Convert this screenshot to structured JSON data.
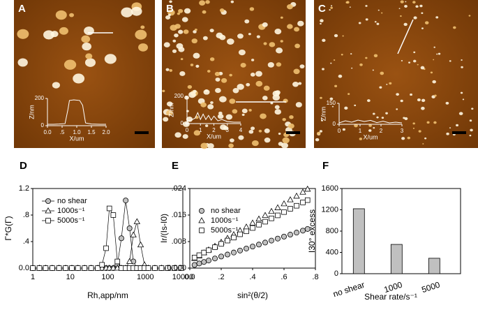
{
  "panel_labels": [
    "A",
    "B",
    "C",
    "D",
    "E",
    "F"
  ],
  "chart_data": [
    {
      "type": "line",
      "xscale": "log",
      "frame": "box",
      "legend": true,
      "xlabel": "Rh,app/nm",
      "ylabel": "Γ*G(Γ)",
      "x": [
        1,
        1.5,
        2.2,
        3.3,
        5,
        7.5,
        11,
        16,
        24,
        36,
        54,
        70,
        90,
        110,
        140,
        180,
        230,
        300,
        380,
        480,
        600,
        750,
        950,
        1200,
        1800,
        2700,
        4000,
        6000,
        9000
      ],
      "series": [
        {
          "name": "no shear",
          "color": "#c0c0c0",
          "marker": "circle",
          "values": [
            0,
            0,
            0,
            0,
            0,
            0,
            0,
            0,
            0,
            0,
            0,
            0,
            0,
            0,
            0,
            0.05,
            0.45,
            1.02,
            0.6,
            0.1,
            0,
            0,
            0,
            0,
            0,
            0,
            0,
            0,
            0
          ]
        },
        {
          "name": "1000s⁻¹",
          "color": "#ffffff",
          "marker": "triangle",
          "values": [
            0,
            0,
            0,
            0,
            0,
            0,
            0,
            0,
            0,
            0,
            0,
            0,
            0,
            0,
            0,
            0,
            0,
            0,
            0.1,
            0.5,
            0.7,
            0.35,
            0.05,
            0,
            0,
            0,
            0,
            0,
            0
          ]
        },
        {
          "name": "5000s⁻¹",
          "color": "#ffffff",
          "marker": "square",
          "values": [
            0,
            0,
            0,
            0,
            0,
            0,
            0,
            0,
            0,
            0,
            0,
            0.05,
            0.3,
            0.9,
            0.8,
            0.1,
            0,
            0,
            0,
            0,
            0,
            0,
            0,
            0,
            0,
            0,
            0,
            0,
            0
          ]
        }
      ],
      "xlim": [
        1,
        10000
      ],
      "xticks": [
        1,
        10,
        100,
        1000,
        10000
      ],
      "ylim": [
        0,
        1.2
      ],
      "yticks": [
        {
          "value": 0,
          "label": "0.0"
        },
        {
          "value": 0.4,
          "label": ".4"
        },
        {
          "value": 0.8,
          "label": ".8"
        },
        {
          "value": 1.2,
          "label": "1.2"
        }
      ]
    },
    {
      "type": "scatter",
      "frame": "box",
      "legend": true,
      "xlabel": "sin²(θ/2)",
      "ylabel": "Ir/(Is-I0)",
      "x": [
        0.03,
        0.06,
        0.09,
        0.12,
        0.16,
        0.2,
        0.24,
        0.28,
        0.32,
        0.36,
        0.4,
        0.44,
        0.48,
        0.52,
        0.56,
        0.6,
        0.64,
        0.68,
        0.72,
        0.75
      ],
      "series": [
        {
          "name": "no shear",
          "color": "#c0c0c0",
          "marker": "circle",
          "values": [
            0.00095,
            0.0014,
            0.00185,
            0.0023,
            0.0029,
            0.0035,
            0.0041,
            0.0047,
            0.0053,
            0.0059,
            0.0065,
            0.0071,
            0.0077,
            0.0083,
            0.0089,
            0.0095,
            0.0101,
            0.0107,
            0.0113,
            0.0118
          ]
        },
        {
          "name": "1000s⁻¹",
          "color": "#ffffff",
          "marker": "triangle",
          "values": [
            0.0029,
            0.0037,
            0.0046,
            0.0055,
            0.0066,
            0.0078,
            0.009,
            0.0101,
            0.0113,
            0.0124,
            0.0136,
            0.0148,
            0.0159,
            0.0171,
            0.0182,
            0.0194,
            0.0206,
            0.0217,
            0.0229,
            0.0238
          ]
        },
        {
          "name": "5000s⁻¹",
          "color": "#ffffff",
          "marker": "square",
          "values": [
            0.0032,
            0.0039,
            0.0047,
            0.0054,
            0.0063,
            0.0073,
            0.0083,
            0.0092,
            0.0102,
            0.0111,
            0.0121,
            0.0131,
            0.014,
            0.015,
            0.0159,
            0.0169,
            0.0179,
            0.0188,
            0.0198,
            0.0205
          ]
        }
      ],
      "xlim": [
        0,
        0.8
      ],
      "xticks": [
        {
          "value": 0,
          "label": "0.0"
        },
        {
          "value": 0.2,
          "label": ".2"
        },
        {
          "value": 0.4,
          "label": ".4"
        },
        {
          "value": 0.6,
          "label": ".6"
        },
        {
          "value": 0.8,
          "label": ".8"
        }
      ],
      "ylim": [
        0,
        0.024
      ],
      "yticks": [
        {
          "value": 0,
          "label": "0.000"
        },
        {
          "value": 0.008,
          "label": ".008"
        },
        {
          "value": 0.016,
          "label": ".016"
        },
        {
          "value": 0.024,
          "label": ".024"
        }
      ]
    },
    {
      "type": "bar",
      "frame": "box",
      "xlabel": "Shear rate/s⁻¹",
      "ylabel": "I30° excess",
      "categories": [
        "no shear",
        "1000",
        "5000"
      ],
      "values": [
        1220,
        550,
        290
      ],
      "color": "#c0c0c0",
      "ylim": [
        0,
        1600
      ],
      "yticks": [
        0,
        400,
        800,
        1200,
        1600
      ]
    },
    {
      "type": "line",
      "frame": "axes",
      "xlabel": "X/um",
      "ylabel": "Z/nm",
      "x": [
        0,
        0.2,
        0.4,
        0.6,
        0.7,
        0.75,
        0.9,
        1.1,
        1.2,
        1.3,
        1.5,
        1.8,
        2.0
      ],
      "series": [
        {
          "color": "#ffffff",
          "values": [
            10,
            10,
            12,
            15,
            120,
            185,
            190,
            185,
            150,
            20,
            12,
            10,
            10
          ]
        }
      ],
      "xlim": [
        0,
        2.0
      ],
      "xticks": [
        {
          "value": 0,
          "label": "0.0"
        },
        {
          "value": 0.5,
          "label": ".5"
        },
        {
          "value": 1.0,
          "label": "1.0"
        },
        {
          "value": 1.5,
          "label": "1.5"
        },
        {
          "value": 2.0,
          "label": "2.0"
        }
      ],
      "ylim": [
        0,
        200
      ],
      "yticks": [
        0,
        200
      ]
    },
    {
      "type": "line",
      "frame": "axes",
      "xlabel": "X/um",
      "ylabel": "Z/nm",
      "x": [
        0,
        0.3,
        0.6,
        0.8,
        1.0,
        1.2,
        1.4,
        1.6,
        1.8,
        2.0,
        2.3,
        2.6,
        3.0,
        3.5,
        4.0
      ],
      "series": [
        {
          "color": "#ffffff",
          "values": [
            20,
            25,
            40,
            80,
            30,
            70,
            30,
            60,
            25,
            55,
            20,
            30,
            15,
            10,
            10
          ]
        }
      ],
      "xlim": [
        0,
        4
      ],
      "xticks": [
        0,
        1,
        2,
        3,
        4
      ],
      "ylim": [
        0,
        200
      ],
      "yticks": [
        0,
        200
      ]
    },
    {
      "type": "line",
      "frame": "axes",
      "xlabel": "X/um",
      "ylabel": "Z/nm",
      "x": [
        0,
        0.3,
        0.6,
        0.9,
        1.2,
        1.5,
        1.8,
        2.1,
        2.4,
        2.7,
        3.0
      ],
      "series": [
        {
          "color": "#ffffff",
          "values": [
            10,
            25,
            15,
            30,
            20,
            28,
            12,
            22,
            10,
            15,
            10
          ]
        }
      ],
      "xlim": [
        0,
        3
      ],
      "xticks": [
        0,
        1,
        2,
        3
      ],
      "ylim": [
        0,
        150
      ],
      "yticks": [
        0,
        150
      ]
    }
  ]
}
